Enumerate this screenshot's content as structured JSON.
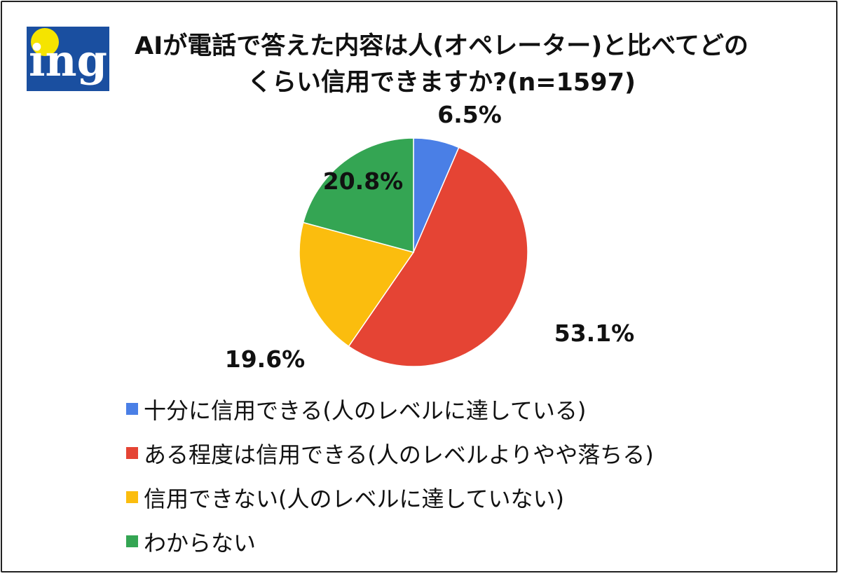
{
  "logo": {
    "text": "ing",
    "colors": {
      "blue": "#1a4fa0",
      "yellow": "#f5e400"
    }
  },
  "title": {
    "line1": "AIが電話で答えた内容は人(オペレーター)と比べてどの",
    "line2": "くらい信用できますか?(n=1597)"
  },
  "chart_data": {
    "type": "pie",
    "title": "AIが電話で答えた内容は人(オペレーター)と比べてどのくらい信用できますか?(n=1597)",
    "n": 1597,
    "legend_position": "bottom",
    "slices": [
      {
        "name": "十分に信用できる(人のレベルに達している)",
        "value": 6.5,
        "label": "6.5%",
        "color": "#4a7fe6"
      },
      {
        "name": "ある程度は信用できる(人のレベルよりやや落ちる)",
        "value": 53.1,
        "label": "53.1%",
        "color": "#e54434"
      },
      {
        "name": "信用できない(人のレベルに達していない)",
        "value": 19.6,
        "label": "19.6%",
        "color": "#fbbd0e"
      },
      {
        "name": "わからない",
        "value": 20.8,
        "label": "20.8%",
        "color": "#34a553"
      }
    ]
  }
}
